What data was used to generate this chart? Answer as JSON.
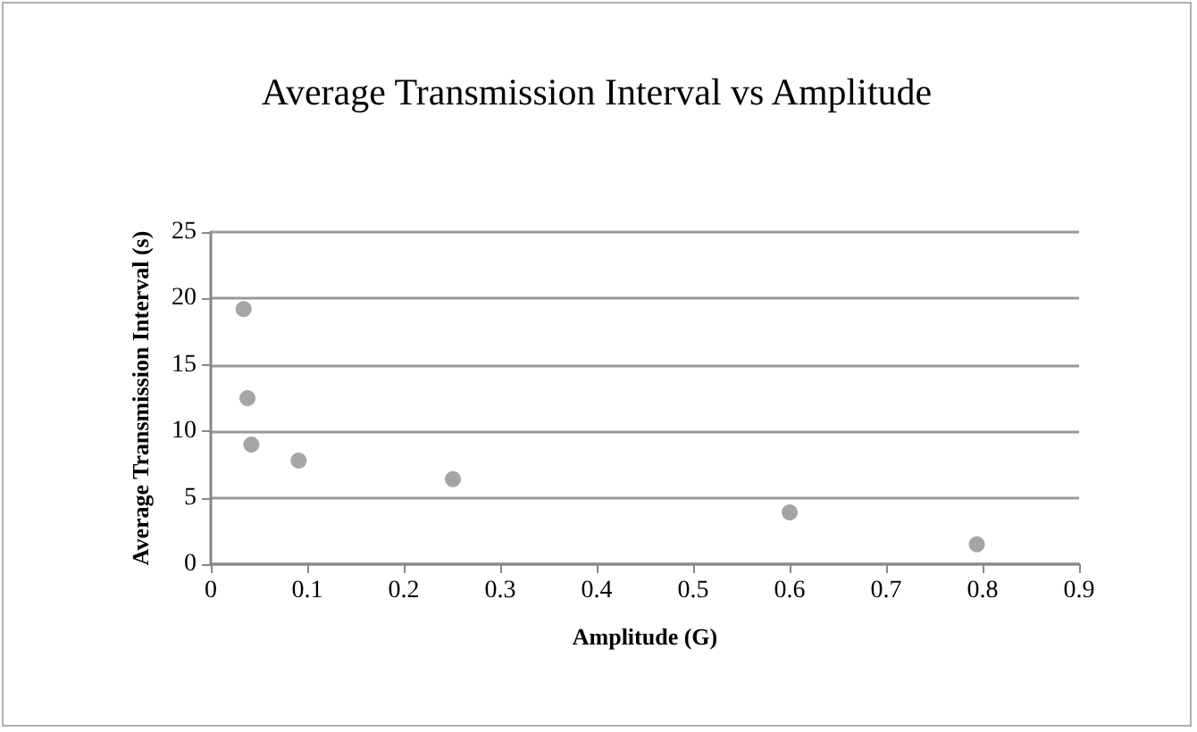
{
  "chart_data": {
    "type": "scatter",
    "title": "Average Transmission Interval vs Amplitude",
    "xlabel": "Amplitude (G)",
    "ylabel": "Average Transmission Interval (s)",
    "x": [
      0.034,
      0.038,
      0.042,
      0.091,
      0.251,
      0.6,
      0.794
    ],
    "series": [
      {
        "color": "#8e8e8e",
        "values": [
          19.2,
          12.5,
          9.0,
          7.8,
          6.4,
          3.9,
          1.5
        ]
      }
    ],
    "xlim": [
      0,
      0.9
    ],
    "xticks": [
      0,
      0.1,
      0.2,
      0.3,
      0.4,
      0.5,
      0.6,
      0.7,
      0.8,
      0.9
    ],
    "ylim": [
      0,
      25
    ],
    "yticks": [
      0,
      5,
      10,
      15,
      20,
      25
    ],
    "grid": "y",
    "marker": "circle"
  }
}
